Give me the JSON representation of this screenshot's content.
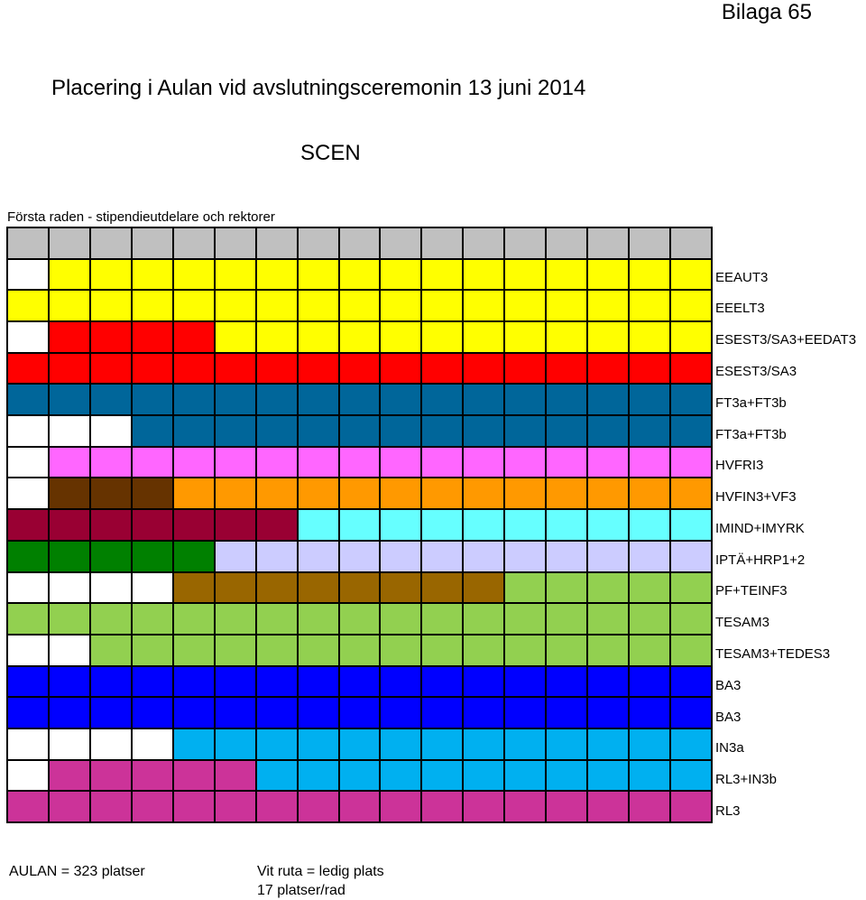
{
  "header": {
    "appendix": "Bilaga 65",
    "title": "Placering i Aulan vid avslutningsceremonin 13 juni 2014",
    "stage": "SCEN",
    "first_row_note": "Första raden - stipendieutdelare och rektorer"
  },
  "colors": {
    "W": "#ffffff",
    "G": "#c0c0c0",
    "Y": "#ffff00",
    "R": "#ff0000",
    "T": "#00669a",
    "P": "#ff66ff",
    "D": "#663300",
    "O": "#ff9900",
    "M": "#990033",
    "C": "#66ffff",
    "K": "#008000",
    "L": "#ccccff",
    "B": "#996600",
    "N": "#92d050",
    "U": "#0000ff",
    "S": "#00b0f0",
    "V": "#cc3399"
  },
  "seating": {
    "seats_per_row": 17,
    "rows": [
      {
        "label": "",
        "seats": [
          "G",
          "G",
          "G",
          "G",
          "G",
          "G",
          "G",
          "G",
          "G",
          "G",
          "G",
          "G",
          "G",
          "G",
          "G",
          "G",
          "G"
        ]
      },
      {
        "label": "EEAUT3",
        "seats": [
          "W",
          "Y",
          "Y",
          "Y",
          "Y",
          "Y",
          "Y",
          "Y",
          "Y",
          "Y",
          "Y",
          "Y",
          "Y",
          "Y",
          "Y",
          "Y",
          "Y"
        ]
      },
      {
        "label": "EEELT3",
        "seats": [
          "Y",
          "Y",
          "Y",
          "Y",
          "Y",
          "Y",
          "Y",
          "Y",
          "Y",
          "Y",
          "Y",
          "Y",
          "Y",
          "Y",
          "Y",
          "Y",
          "Y"
        ]
      },
      {
        "label": "ESEST3/SA3+EEDAT3",
        "seats": [
          "W",
          "R",
          "R",
          "R",
          "R",
          "Y",
          "Y",
          "Y",
          "Y",
          "Y",
          "Y",
          "Y",
          "Y",
          "Y",
          "Y",
          "Y",
          "Y"
        ]
      },
      {
        "label": "ESEST3/SA3",
        "seats": [
          "R",
          "R",
          "R",
          "R",
          "R",
          "R",
          "R",
          "R",
          "R",
          "R",
          "R",
          "R",
          "R",
          "R",
          "R",
          "R",
          "R"
        ]
      },
      {
        "label": "FT3a+FT3b",
        "seats": [
          "T",
          "T",
          "T",
          "T",
          "T",
          "T",
          "T",
          "T",
          "T",
          "T",
          "T",
          "T",
          "T",
          "T",
          "T",
          "T",
          "T"
        ]
      },
      {
        "label": "FT3a+FT3b",
        "seats": [
          "W",
          "W",
          "W",
          "T",
          "T",
          "T",
          "T",
          "T",
          "T",
          "T",
          "T",
          "T",
          "T",
          "T",
          "T",
          "T",
          "T"
        ]
      },
      {
        "label": "HVFRI3",
        "seats": [
          "W",
          "P",
          "P",
          "P",
          "P",
          "P",
          "P",
          "P",
          "P",
          "P",
          "P",
          "P",
          "P",
          "P",
          "P",
          "P",
          "P"
        ]
      },
      {
        "label": "HVFIN3+VF3",
        "seats": [
          "W",
          "D",
          "D",
          "D",
          "O",
          "O",
          "O",
          "O",
          "O",
          "O",
          "O",
          "O",
          "O",
          "O",
          "O",
          "O",
          "O"
        ]
      },
      {
        "label": "IMIND+IMYRK",
        "seats": [
          "M",
          "M",
          "M",
          "M",
          "M",
          "M",
          "M",
          "C",
          "C",
          "C",
          "C",
          "C",
          "C",
          "C",
          "C",
          "C",
          "C"
        ]
      },
      {
        "label": "IPTÄ+HRP1+2",
        "seats": [
          "K",
          "K",
          "K",
          "K",
          "K",
          "L",
          "L",
          "L",
          "L",
          "L",
          "L",
          "L",
          "L",
          "L",
          "L",
          "L",
          "L"
        ]
      },
      {
        "label": "PF+TEINF3",
        "seats": [
          "W",
          "W",
          "W",
          "W",
          "B",
          "B",
          "B",
          "B",
          "B",
          "B",
          "B",
          "B",
          "N",
          "N",
          "N",
          "N",
          "N"
        ]
      },
      {
        "label": "TESAM3",
        "seats": [
          "N",
          "N",
          "N",
          "N",
          "N",
          "N",
          "N",
          "N",
          "N",
          "N",
          "N",
          "N",
          "N",
          "N",
          "N",
          "N",
          "N"
        ]
      },
      {
        "label": "TESAM3+TEDES3",
        "seats": [
          "W",
          "W",
          "N",
          "N",
          "N",
          "N",
          "N",
          "N",
          "N",
          "N",
          "N",
          "N",
          "N",
          "N",
          "N",
          "N",
          "N"
        ]
      },
      {
        "label": "BA3",
        "seats": [
          "U",
          "U",
          "U",
          "U",
          "U",
          "U",
          "U",
          "U",
          "U",
          "U",
          "U",
          "U",
          "U",
          "U",
          "U",
          "U",
          "U"
        ]
      },
      {
        "label": "BA3",
        "seats": [
          "U",
          "U",
          "U",
          "U",
          "U",
          "U",
          "U",
          "U",
          "U",
          "U",
          "U",
          "U",
          "U",
          "U",
          "U",
          "U",
          "U"
        ]
      },
      {
        "label": "IN3a",
        "seats": [
          "W",
          "W",
          "W",
          "W",
          "S",
          "S",
          "S",
          "S",
          "S",
          "S",
          "S",
          "S",
          "S",
          "S",
          "S",
          "S",
          "S"
        ]
      },
      {
        "label": "RL3+IN3b",
        "seats": [
          "W",
          "V",
          "V",
          "V",
          "V",
          "V",
          "S",
          "S",
          "S",
          "S",
          "S",
          "S",
          "S",
          "S",
          "S",
          "S",
          "S"
        ]
      },
      {
        "label": "RL3",
        "seats": [
          "V",
          "V",
          "V",
          "V",
          "V",
          "V",
          "V",
          "V",
          "V",
          "V",
          "V",
          "V",
          "V",
          "V",
          "V",
          "V",
          "V"
        ]
      }
    ]
  },
  "footer": {
    "total": "AULAN = 323 platser",
    "legend_white": "Vit ruta = ledig plats",
    "legend_per_row": "17 platser/rad"
  }
}
